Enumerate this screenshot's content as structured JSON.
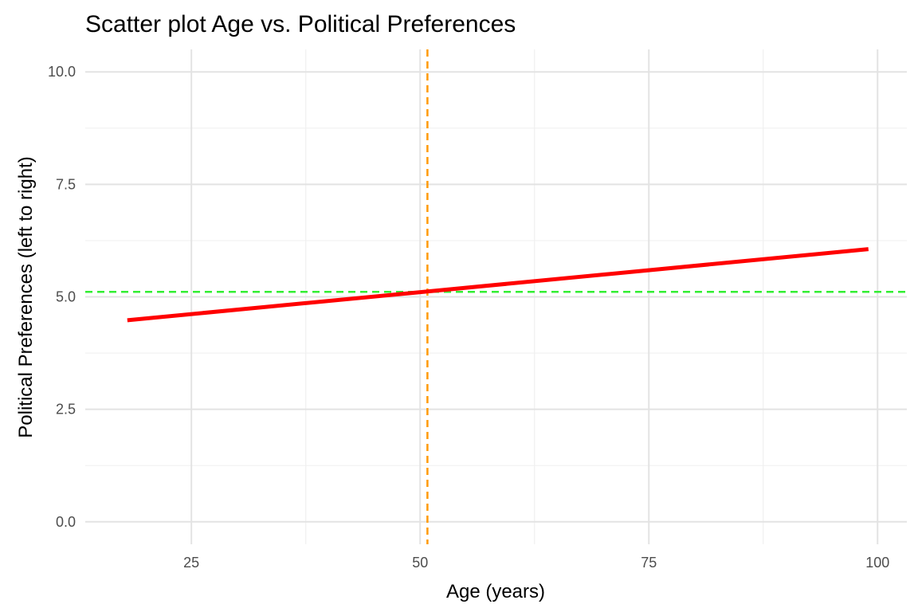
{
  "chart_data": {
    "type": "line",
    "title": "Scatter plot Age vs. Political Preferences",
    "xlabel": "Age (years)",
    "ylabel": "Political Preferences (left to right)",
    "xlim": [
      13.4,
      103.2
    ],
    "ylim": [
      -0.5,
      10.5
    ],
    "x_ticks": [
      25,
      50,
      75,
      100
    ],
    "x_tick_labels": [
      "25",
      "50",
      "75",
      "100"
    ],
    "y_ticks": [
      0,
      2.5,
      5,
      7.5,
      10
    ],
    "y_tick_labels": [
      "0.0",
      "2.5",
      "5.0",
      "7.5",
      "10.0"
    ],
    "grid": true,
    "series": [
      {
        "x": [
          18,
          99
        ],
        "values": [
          4.48,
          6.06
        ],
        "color": "#ff0000",
        "style": "solid"
      }
    ],
    "reference_lines": [
      {
        "orientation": "vertical",
        "value": 50.8,
        "color": "#ff9900",
        "style": "dashed"
      },
      {
        "orientation": "horizontal",
        "value": 5.11,
        "color": "#33ee33",
        "style": "dashed"
      }
    ]
  }
}
